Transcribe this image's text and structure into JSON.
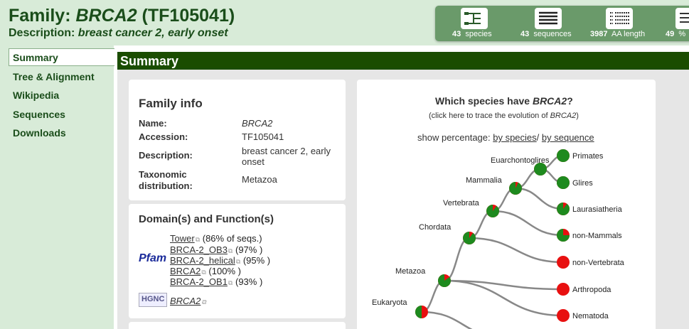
{
  "header": {
    "title_prefix": "Family: ",
    "title_name": "BRCA2",
    "title_suffix": " (TF105041)",
    "desc_prefix": "Description: ",
    "desc_text": "breast cancer 2, early onset"
  },
  "stats": [
    {
      "icon": "species-tree-icon",
      "num": "43",
      "label": "species"
    },
    {
      "icon": "sequences-icon",
      "num": "43",
      "label": "sequences"
    },
    {
      "icon": "alignment-length-icon",
      "num": "3987",
      "label": "AA length"
    },
    {
      "icon": "identity-icon",
      "num": "49",
      "label": "%"
    }
  ],
  "sidebar": {
    "items": [
      "Summary",
      "Tree & Alignment",
      "Wikipedia",
      "Sequences",
      "Downloads"
    ]
  },
  "main": {
    "heading": "Summary"
  },
  "family_info": {
    "heading": "Family info",
    "name_label": "Name:",
    "name": "BRCA2",
    "accession_label": "Accession:",
    "accession": "TF105041",
    "description_label": "Description:",
    "description_1": "breast cancer 2, early",
    "description_2": "onset",
    "tax_label_1": "Taxonomic",
    "tax_label_2": "distribution:",
    "tax": "Metazoa"
  },
  "domains": {
    "heading": "Domain(s) and Function(s)",
    "pfam_label": "Pfam",
    "hgnc_label": "HGNC",
    "items": [
      {
        "name": "Tower",
        "pct": "(86% of seqs.)"
      },
      {
        "name": "BRCA-2_OB3",
        "pct": "(97% )"
      },
      {
        "name": "BRCA-2_helical",
        "pct": "(95% )"
      },
      {
        "name": "BRCA2",
        "pct": "(100% )"
      },
      {
        "name": "BRCA-2_OB1",
        "pct": "(93% )"
      }
    ],
    "hgnc_name": "BRCA2"
  },
  "species": {
    "title_prefix": "Which species have ",
    "title_gene": "BRCA2",
    "title_suffix": "?",
    "sub_prefix": "(click here to trace the evolution of ",
    "sub_gene": "BRCA2",
    "sub_suffix": ")",
    "pct_label": "show percentage: ",
    "by_species": "by species",
    "sep": "/ ",
    "by_sequence": "by sequence"
  },
  "tree": {
    "nodes": [
      {
        "label": "Eukaryota",
        "frac": 0.5
      },
      {
        "label": "Metazoa",
        "frac": 0.85
      },
      {
        "label": "Chordata",
        "frac": 0.9
      },
      {
        "label": "Vertebrata",
        "frac": 0.9
      },
      {
        "label": "Mammalia",
        "frac": 0.93
      },
      {
        "label": "Euarchontoglires",
        "frac": 1.0
      }
    ],
    "leaves": [
      {
        "label": "Primates",
        "frac": 1.0
      },
      {
        "label": "Glires",
        "frac": 1.0
      },
      {
        "label": "Laurasiatheria",
        "frac": 0.9
      },
      {
        "label": "non-Mammals",
        "frac": 0.75
      },
      {
        "label": "non-Vertebrata",
        "frac": 0.0
      },
      {
        "label": "Arthropoda",
        "frac": 0.0
      },
      {
        "label": "Nematoda",
        "frac": 0.0
      }
    ],
    "green": "#1e8a1e",
    "red": "#e81010",
    "branch": "#888888"
  }
}
